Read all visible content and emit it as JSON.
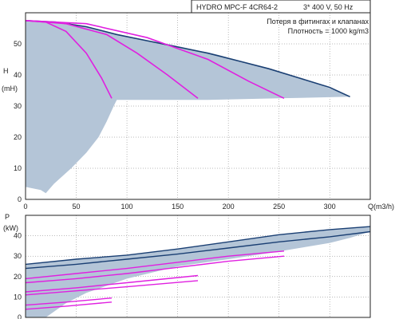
{
  "header": {
    "model": "HYDRO MPC-F 4CR64-2",
    "supply": "3* 400 V, 50 Hz",
    "note_losses": "Потеря в фитингах и клапанах",
    "note_density": "Плотность = 1000 kg/m3"
  },
  "colors": {
    "envelope_fill": "#b4c5d7",
    "max_curve": "#1a3f73",
    "reduced_curves": "#e020e0",
    "grid": "#777777"
  },
  "chart_data": [
    {
      "type": "line",
      "id": "head",
      "ylabel": "H",
      "yunit": "(mH)",
      "xlabel": "Q(m3/h)",
      "xlim": [
        0,
        340
      ],
      "ylim": [
        0,
        60
      ],
      "xticks": [
        0,
        50,
        100,
        150,
        200,
        250,
        300
      ],
      "yticks": [
        0,
        10,
        20,
        30,
        40,
        50
      ],
      "grid": true,
      "envelope": [
        [
          0,
          57.5
        ],
        [
          30,
          57
        ],
        [
          60,
          55.5
        ],
        [
          90,
          53
        ],
        [
          140,
          50
        ],
        [
          190,
          46.5
        ],
        [
          240,
          42
        ],
        [
          280,
          38
        ],
        [
          310,
          34.5
        ],
        [
          320,
          33
        ],
        [
          250,
          32.5
        ],
        [
          180,
          32
        ],
        [
          130,
          32
        ],
        [
          90,
          32
        ],
        [
          87,
          30
        ],
        [
          80,
          25
        ],
        [
          72,
          20
        ],
        [
          60,
          15
        ],
        [
          45,
          10
        ],
        [
          28,
          5
        ],
        [
          20,
          2
        ],
        [
          15,
          3
        ],
        [
          0,
          4
        ]
      ],
      "max_curve": [
        [
          0,
          57.5
        ],
        [
          30,
          57
        ],
        [
          60,
          55.5
        ],
        [
          90,
          53
        ],
        [
          120,
          51
        ],
        [
          150,
          49
        ],
        [
          180,
          47
        ],
        [
          210,
          44.5
        ],
        [
          240,
          42
        ],
        [
          270,
          39
        ],
        [
          300,
          36
        ],
        [
          320,
          33
        ]
      ],
      "series": [
        {
          "points": [
            [
              0,
              57.5
            ],
            [
              20,
              57
            ],
            [
              40,
              54
            ],
            [
              60,
              47
            ],
            [
              75,
              39
            ],
            [
              85,
              32.5
            ]
          ]
        },
        {
          "points": [
            [
              0,
              57.5
            ],
            [
              40,
              56.5
            ],
            [
              80,
              53
            ],
            [
              110,
              47
            ],
            [
              140,
              40
            ],
            [
              170,
              32.5
            ]
          ]
        },
        {
          "points": [
            [
              0,
              57.5
            ],
            [
              60,
              56.5
            ],
            [
              120,
              52
            ],
            [
              180,
              45
            ],
            [
              220,
              38
            ],
            [
              255,
              32.5
            ]
          ]
        }
      ]
    },
    {
      "type": "line",
      "id": "power",
      "ylabel": "P",
      "yunit": "(kW)",
      "xlim": [
        0,
        340
      ],
      "ylim": [
        0,
        50
      ],
      "yticks": [
        0,
        10,
        20,
        30,
        40
      ],
      "grid": true,
      "envelope": [
        [
          0,
          26
        ],
        [
          50,
          28.5
        ],
        [
          100,
          30.5
        ],
        [
          150,
          33.5
        ],
        [
          200,
          37
        ],
        [
          250,
          40.5
        ],
        [
          300,
          43
        ],
        [
          340,
          44.5
        ],
        [
          340,
          42
        ],
        [
          320,
          39
        ],
        [
          300,
          36.5
        ],
        [
          270,
          34
        ],
        [
          240,
          31.5
        ],
        [
          200,
          28.5
        ],
        [
          150,
          25
        ],
        [
          100,
          19
        ],
        [
          60,
          12
        ],
        [
          40,
          7
        ],
        [
          20,
          0
        ],
        [
          0,
          0
        ]
      ],
      "max_curves": [
        {
          "points": [
            [
              0,
              26
            ],
            [
              50,
              28.5
            ],
            [
              100,
              30.5
            ],
            [
              150,
              33.5
            ],
            [
              200,
              37
            ],
            [
              250,
              40.5
            ],
            [
              300,
              43
            ],
            [
              340,
              44.5
            ]
          ]
        },
        {
          "points": [
            [
              0,
              24
            ],
            [
              50,
              26
            ],
            [
              100,
              28.5
            ],
            [
              150,
              31
            ],
            [
              200,
              34
            ],
            [
              250,
              37
            ],
            [
              300,
              39.5
            ],
            [
              340,
              42
            ]
          ]
        }
      ],
      "series": [
        {
          "points": [
            [
              0,
              19
            ],
            [
              50,
              21.5
            ],
            [
              100,
              24
            ],
            [
              150,
              27
            ],
            [
              200,
              30
            ],
            [
              255,
              32.5
            ]
          ]
        },
        {
          "points": [
            [
              0,
              17
            ],
            [
              50,
              19
            ],
            [
              100,
              21.5
            ],
            [
              150,
              24.5
            ],
            [
              200,
              27.5
            ],
            [
              255,
              30
            ]
          ]
        },
        {
          "points": [
            [
              0,
              12.5
            ],
            [
              50,
              14.5
            ],
            [
              100,
              17
            ],
            [
              170,
              20.5
            ]
          ]
        },
        {
          "points": [
            [
              0,
              11
            ],
            [
              50,
              13
            ],
            [
              100,
              15
            ],
            [
              170,
              18
            ]
          ]
        },
        {
          "points": [
            [
              0,
              6
            ],
            [
              40,
              7.5
            ],
            [
              85,
              9.5
            ]
          ]
        },
        {
          "points": [
            [
              0,
              4
            ],
            [
              40,
              5.5
            ],
            [
              85,
              7.5
            ]
          ]
        }
      ]
    }
  ]
}
